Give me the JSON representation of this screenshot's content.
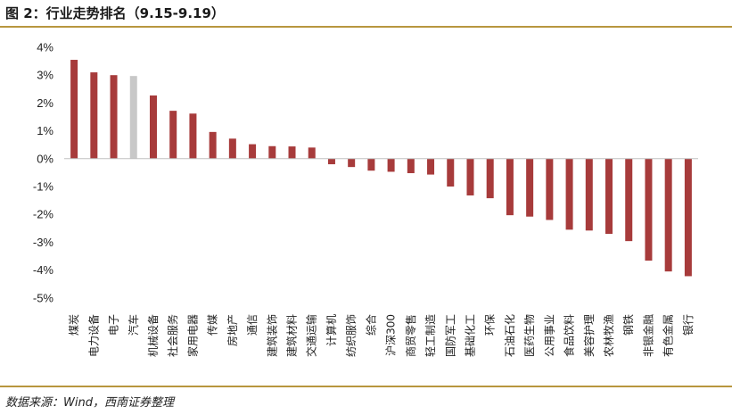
{
  "header": {
    "title": "图 2：行业走势排名（9.15-9.19）"
  },
  "footer": {
    "source": "数据来源：Wind，西南证券整理"
  },
  "colors": {
    "bar": "#a73b3b",
    "highlight": "#c8c8c8",
    "rule": "#b8963e",
    "axis": "#c0c0c0"
  },
  "chart_data": {
    "type": "bar",
    "title": "图 2：行业走势排名（9.15-9.19）",
    "xlabel": "",
    "ylabel": "",
    "ylim": [
      -5,
      4
    ],
    "yticks": [
      4,
      3,
      2,
      1,
      0,
      -1,
      -2,
      -3,
      -4,
      -5
    ],
    "ytick_labels": [
      "4%",
      "3%",
      "2%",
      "1%",
      "0%",
      "-1%",
      "-2%",
      "-3%",
      "-4%",
      "-5%"
    ],
    "grid": false,
    "legend": "none",
    "highlight_category": "汽车",
    "categories": [
      "煤炭",
      "电力设备",
      "电子",
      "汽车",
      "机械设备",
      "社会服务",
      "家用电器",
      "传媒",
      "房地产",
      "通信",
      "建筑装饰",
      "建筑材料",
      "交通运输",
      "计算机",
      "纺织服饰",
      "综合",
      "沪深300",
      "商贸零售",
      "轻工制造",
      "国防军工",
      "基础化工",
      "环保",
      "石油石化",
      "医药生物",
      "公用事业",
      "食品饮料",
      "美容护理",
      "农林牧渔",
      "钢铁",
      "非银金融",
      "有色金属",
      "银行"
    ],
    "values": [
      3.55,
      3.1,
      3.0,
      2.97,
      2.27,
      1.72,
      1.62,
      0.96,
      0.72,
      0.52,
      0.45,
      0.44,
      0.4,
      -0.2,
      -0.3,
      -0.43,
      -0.47,
      -0.52,
      -0.57,
      -1.0,
      -1.32,
      -1.42,
      -2.03,
      -2.08,
      -2.2,
      -2.55,
      -2.58,
      -2.7,
      -2.96,
      -3.66,
      -4.05,
      -4.22
    ]
  }
}
